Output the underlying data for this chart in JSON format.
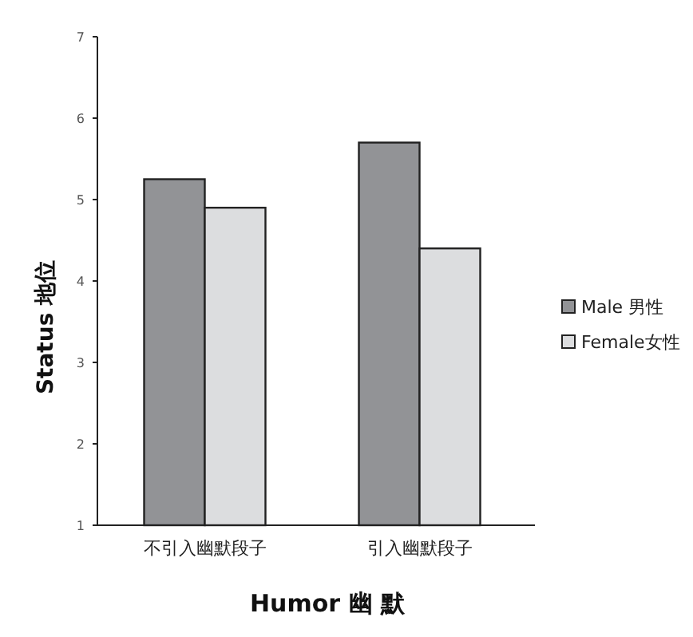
{
  "chart_data": {
    "type": "bar",
    "xlabel": "Humor 幽 默",
    "ylabel": "Status 地位",
    "categories": [
      "不引入幽默段子",
      "引入幽默段子"
    ],
    "series": [
      {
        "name": "Male 男性",
        "color": "#929396",
        "values": [
          5.25,
          5.7
        ]
      },
      {
        "name": "Female女性",
        "color": "#dcdddf",
        "values": [
          4.9,
          4.4
        ]
      }
    ],
    "ylim": [
      1,
      7
    ],
    "yticks": [
      1,
      2,
      3,
      4,
      5,
      6,
      7
    ],
    "legend": "right",
    "grid": false
  }
}
